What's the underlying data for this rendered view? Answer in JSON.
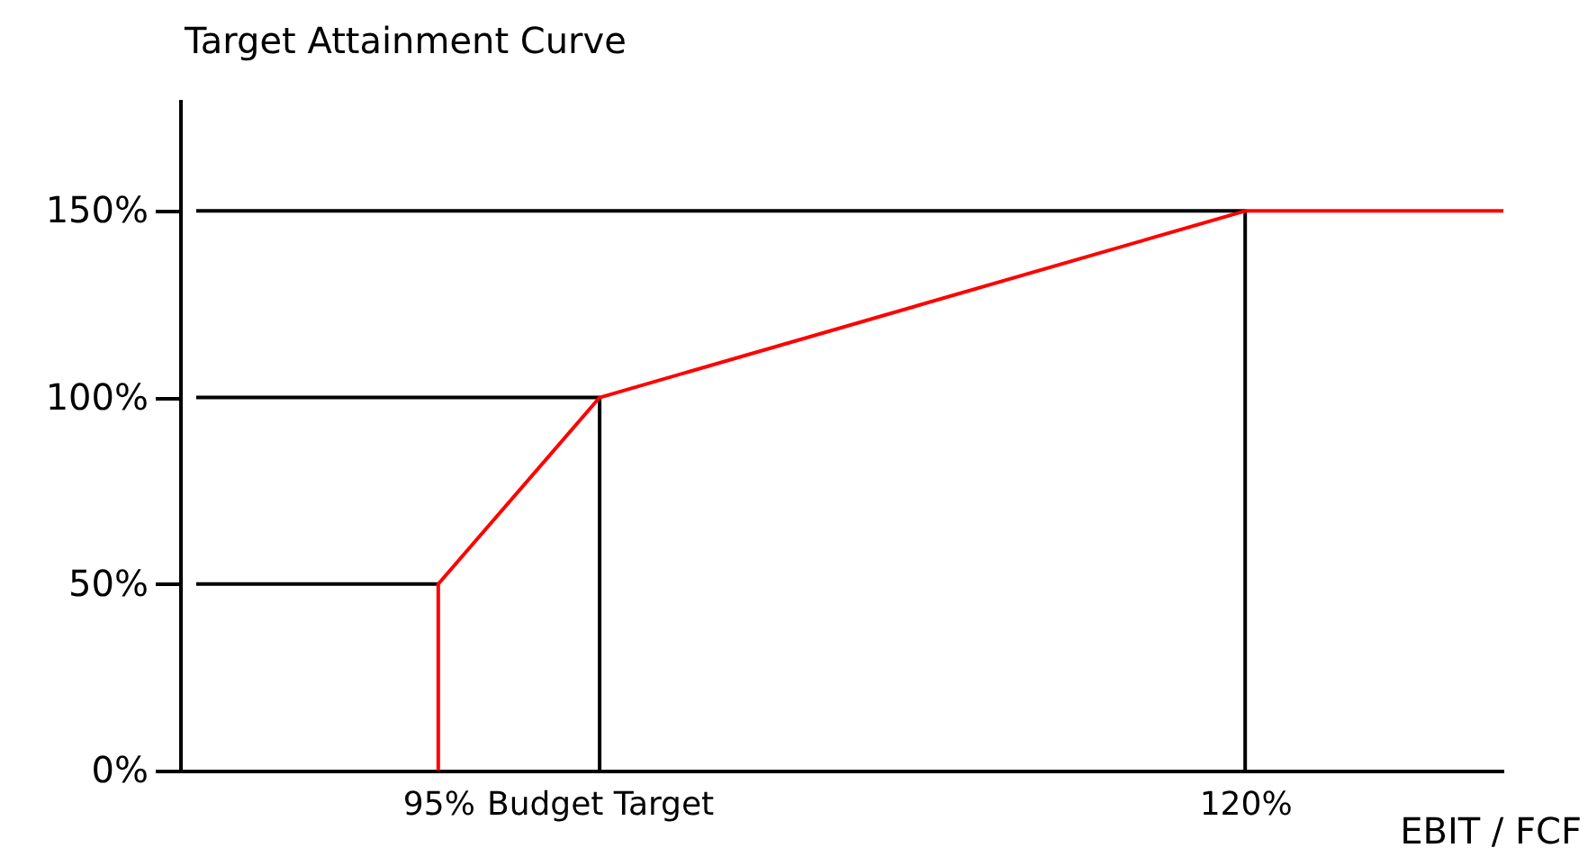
{
  "chart_data": {
    "type": "line",
    "xlabel": "EBIT / FCF",
    "ylabel": "Target Attainment Curve",
    "xlim": [
      87,
      128
    ],
    "xticks": [
      {
        "value": 95,
        "label": "95%"
      },
      {
        "value": 100,
        "label": "Budget Target"
      },
      {
        "value": 120,
        "label": "120%"
      }
    ],
    "ylim": [
      0,
      180
    ],
    "yticks": [
      {
        "value": 0,
        "label": "0%"
      },
      {
        "value": 50,
        "label": "50%"
      },
      {
        "value": 100,
        "label": "100%"
      },
      {
        "value": 150,
        "label": "150%"
      }
    ],
    "grid": false,
    "legend": false,
    "marker": "none",
    "line_style": "solid",
    "series": [
      {
        "color": "#000000",
        "x": [
          87.5,
          95
        ],
        "values": [
          50,
          50
        ]
      },
      {
        "color": "#000000",
        "x": [
          87.5,
          100,
          100
        ],
        "values": [
          100,
          100,
          0
        ]
      },
      {
        "color": "#000000",
        "x": [
          87.5,
          120,
          120
        ],
        "values": [
          150,
          150,
          0
        ]
      },
      {
        "color": "#ff0000",
        "x": [
          95,
          95,
          100,
          120,
          128
        ],
        "values": [
          0,
          50,
          100,
          150,
          150
        ]
      }
    ]
  }
}
